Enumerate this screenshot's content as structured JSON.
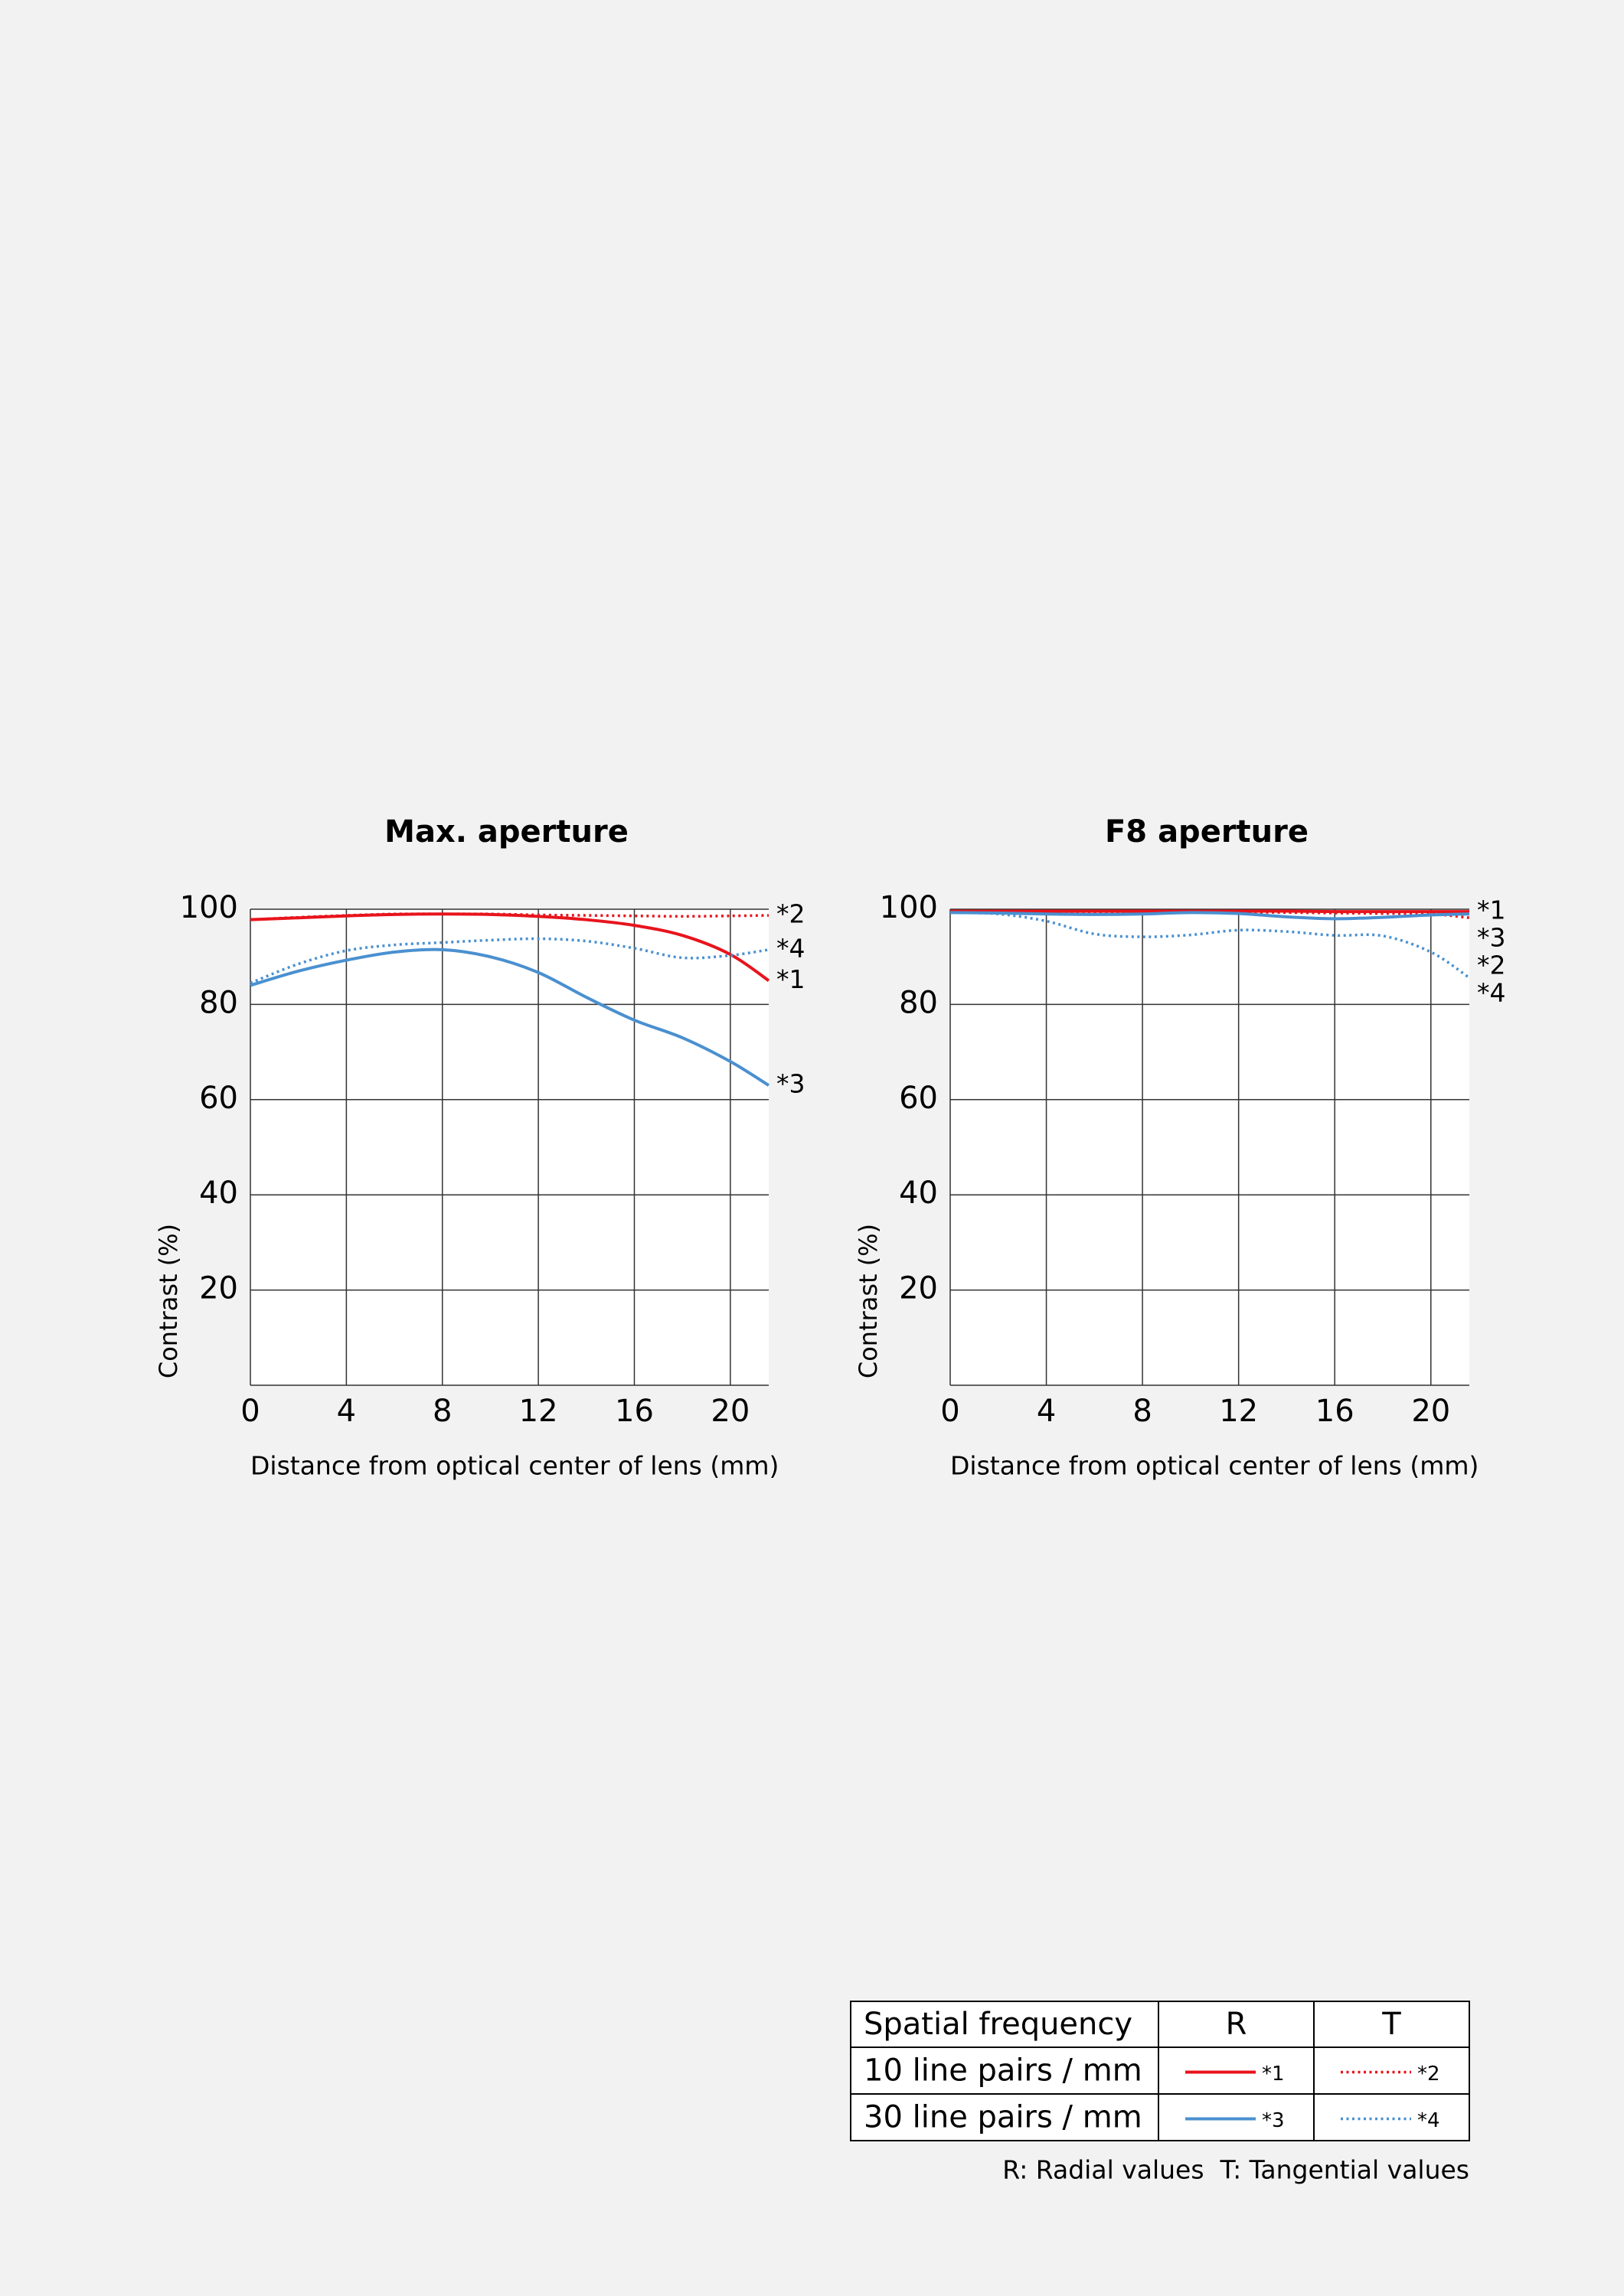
{
  "chart_data": [
    {
      "type": "line",
      "title": "Max. aperture",
      "x_label": "Distance from optical center of lens (mm)",
      "y_label": "Contrast (%)",
      "x": [
        0,
        2,
        4,
        6,
        8,
        10,
        12,
        14,
        16,
        18,
        20,
        21.6
      ],
      "xlim": [
        0,
        21.6
      ],
      "xticks": [
        0,
        4,
        8,
        12,
        16,
        20
      ],
      "ylim": [
        0,
        100
      ],
      "yticks": [
        20,
        40,
        60,
        80,
        100
      ],
      "grid": true,
      "series": [
        {
          "name": "*1",
          "color": "#e8141c",
          "line_style": "solid",
          "values": [
            97.8,
            98.2,
            98.6,
            98.9,
            99.0,
            98.9,
            98.5,
            97.8,
            96.6,
            94.5,
            90.5,
            85
          ]
        },
        {
          "name": "*2",
          "color": "#e8141c",
          "line_style": "dotted",
          "values": [
            97.8,
            98.3,
            98.7,
            99.0,
            99.0,
            99.0,
            98.8,
            98.7,
            98.6,
            98.5,
            98.6,
            98.7
          ]
        },
        {
          "name": "*3",
          "color": "#4a90d0",
          "line_style": "solid",
          "values": [
            84,
            87,
            89.3,
            91,
            91.5,
            90,
            86.7,
            81.5,
            76.7,
            73,
            68,
            63
          ]
        },
        {
          "name": "*4",
          "color": "#4a90d0",
          "line_style": "dotted",
          "values": [
            84.5,
            88.5,
            91.3,
            92.5,
            93,
            93.5,
            93.8,
            93.3,
            91.8,
            89.8,
            90.3,
            91.5
          ]
        }
      ]
    },
    {
      "type": "line",
      "title": "F8 aperture",
      "x_label": "Distance from optical center of lens (mm)",
      "y_label": "Contrast (%)",
      "x": [
        0,
        2,
        4,
        6,
        8,
        10,
        12,
        14,
        16,
        18,
        20,
        21.6
      ],
      "xlim": [
        0,
        21.6
      ],
      "xticks": [
        0,
        4,
        8,
        12,
        16,
        20
      ],
      "ylim": [
        0,
        100
      ],
      "yticks": [
        20,
        40,
        60,
        80,
        100
      ],
      "grid": true,
      "series": [
        {
          "name": "*1",
          "color": "#e8141c",
          "line_style": "solid",
          "values": [
            99.6,
            99.6,
            99.6,
            99.6,
            99.6,
            99.6,
            99.6,
            99.6,
            99.5,
            99.5,
            99.5,
            99.5
          ]
        },
        {
          "name": "*2",
          "color": "#e8141c",
          "line_style": "dotted",
          "values": [
            99.5,
            99.5,
            99.4,
            99.4,
            99.4,
            99.4,
            99.4,
            99.3,
            99.2,
            99.1,
            99.0,
            98.2
          ]
        },
        {
          "name": "*3",
          "color": "#4a90d0",
          "line_style": "solid",
          "values": [
            99.3,
            99.2,
            99.0,
            98.9,
            99.0,
            99.3,
            99.1,
            98.4,
            98.0,
            98.3,
            98.8,
            99.0
          ]
        },
        {
          "name": "*4",
          "color": "#4a90d0",
          "line_style": "dotted",
          "values": [
            99.3,
            99.0,
            97.5,
            94.8,
            94.2,
            94.6,
            95.6,
            95.3,
            94.5,
            94.4,
            91,
            85.6
          ]
        }
      ]
    }
  ],
  "legend_table": {
    "header": [
      "Spatial frequency",
      "R",
      "T"
    ],
    "rows": [
      "10 line pairs / mm",
      "30 line pairs / mm"
    ],
    "note": "R: Radial values  T: Tangential values"
  }
}
